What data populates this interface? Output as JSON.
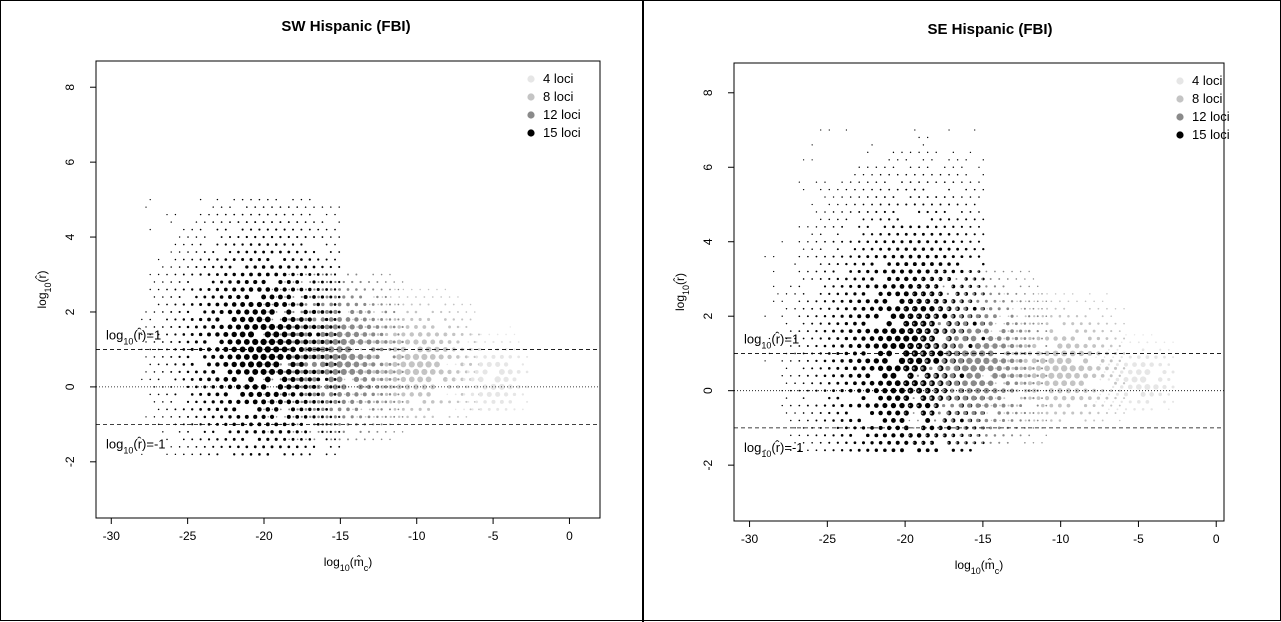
{
  "chart_data": [
    {
      "type": "scatter",
      "title": "SW Hispanic (FBI)",
      "xlabel": "log10(m̂c)",
      "ylabel": "log10(r̂)",
      "xlim": [
        -31,
        2
      ],
      "ylim": [
        -3.5,
        8.7
      ],
      "x_ticks": [
        -30,
        -25,
        -20,
        -15,
        -10,
        -5,
        0
      ],
      "y_ticks": [
        -2,
        0,
        2,
        4,
        6,
        8
      ],
      "reference_lines": [
        {
          "y": 1,
          "style": "dashed",
          "label": "log10(r̂)=1"
        },
        {
          "y": 0,
          "style": "dotted"
        },
        {
          "y": -1,
          "style": "dashed",
          "label": "log10(r̂)=-1"
        }
      ],
      "legend": {
        "position": "top-right",
        "entries": [
          "4 loci",
          "8 loci",
          "12 loci",
          "15 loci"
        ],
        "colors": [
          "#e6e6e6",
          "#c4c4c4",
          "#8a8a8a",
          "#000000"
        ]
      },
      "series": [
        {
          "name": "4 loci",
          "center": [
            -5,
            0.2
          ],
          "x_range": [
            -8,
            -3
          ],
          "y_range": [
            -0.6,
            1.6
          ]
        },
        {
          "name": "8 loci",
          "center": [
            -10,
            0.6
          ],
          "x_range": [
            -15,
            -6
          ],
          "y_range": [
            -0.8,
            2.6
          ]
        },
        {
          "name": "12 loci",
          "center": [
            -15,
            0.8
          ],
          "x_range": [
            -20,
            -11
          ],
          "y_range": [
            -1.4,
            3.2
          ]
        },
        {
          "name": "15 loci",
          "center": [
            -20,
            1.0
          ],
          "x_range": [
            -28,
            -15
          ],
          "y_range": [
            -1.8,
            5.1
          ]
        }
      ]
    },
    {
      "type": "scatter",
      "title": "SE Hispanic (FBI)",
      "xlabel": "log10(m̂c)",
      "ylabel": "log10(r̂)",
      "xlim": [
        -31,
        0.5
      ],
      "ylim": [
        -3.5,
        8.8
      ],
      "x_ticks": [
        -30,
        -25,
        -20,
        -15,
        -10,
        -5,
        0
      ],
      "y_ticks": [
        -2,
        0,
        2,
        4,
        6,
        8
      ],
      "reference_lines": [
        {
          "y": 1,
          "style": "dashed",
          "label": "log10(r̂)=1"
        },
        {
          "y": 0,
          "style": "dotted"
        },
        {
          "y": -1,
          "style": "dashed",
          "label": "log10(r̂)=-1"
        }
      ],
      "legend": {
        "position": "top-right",
        "entries": [
          "4 loci",
          "8 loci",
          "12 loci",
          "15 loci"
        ],
        "colors": [
          "#e6e6e6",
          "#c4c4c4",
          "#8a8a8a",
          "#000000"
        ]
      },
      "series": [
        {
          "name": "4 loci",
          "center": [
            -4.8,
            0.3
          ],
          "x_range": [
            -8,
            -3
          ],
          "y_range": [
            -0.5,
            1.5
          ]
        },
        {
          "name": "8 loci",
          "center": [
            -10,
            0.6
          ],
          "x_range": [
            -15,
            -6
          ],
          "y_range": [
            -0.8,
            2.6
          ]
        },
        {
          "name": "12 loci",
          "center": [
            -15.5,
            0.7
          ],
          "x_range": [
            -20,
            -11
          ],
          "y_range": [
            -1.4,
            3.4
          ]
        },
        {
          "name": "15 loci",
          "center": [
            -19.5,
            0.9
          ],
          "x_range": [
            -29,
            -15
          ],
          "y_range": [
            -1.6,
            7.2
          ]
        }
      ]
    }
  ]
}
